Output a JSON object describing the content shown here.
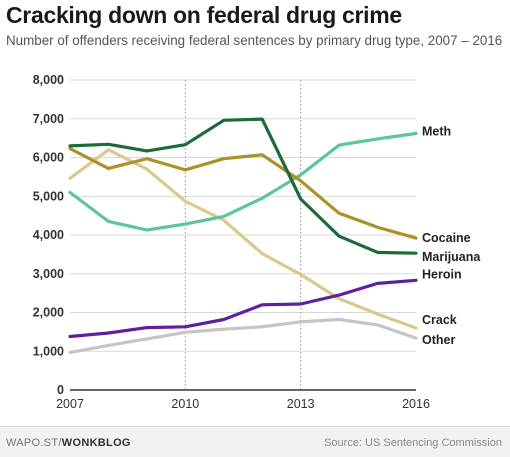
{
  "header": {
    "title": "Cracking down on federal drug crime",
    "subtitle": "Number of offenders receiving federal sentences by primary drug type, 2007 – 2016"
  },
  "footer": {
    "credit_prefix": "WAPO.ST/",
    "credit_brand": "WONKBLOG",
    "source": "Source: US Sentencing Commission"
  },
  "chart_data": {
    "type": "line",
    "title": "Cracking down on federal drug crime",
    "subtitle": "Number of offenders receiving federal sentences by primary drug type, 2007 – 2016",
    "xlabel": "",
    "ylabel": "",
    "xlim": [
      2007,
      2016
    ],
    "ylim": [
      0,
      8000
    ],
    "x_ticks": [
      2007,
      2010,
      2013,
      2016
    ],
    "x_tick_labels": [
      "2007",
      "2010",
      "2013",
      "2016"
    ],
    "y_ticks": [
      0,
      1000,
      2000,
      3000,
      4000,
      5000,
      6000,
      7000,
      8000
    ],
    "y_tick_labels": [
      "0",
      "1,000",
      "2,000",
      "3,000",
      "4,000",
      "5,000",
      "6,000",
      "7,000",
      "8,000"
    ],
    "grid": "horizontal gridlines; dotted vertical lines at 2010 and 2013",
    "legend": "direct labels at right end of each line",
    "x": [
      2007,
      2008,
      2009,
      2010,
      2011,
      2012,
      2013,
      2014,
      2015,
      2016
    ],
    "series": [
      {
        "name": "Meth",
        "color": "#5cc69a",
        "values": [
          5100,
          4350,
          4130,
          4280,
          4480,
          4950,
          5550,
          6320,
          6480,
          6620
        ]
      },
      {
        "name": "Cocaine",
        "color": "#ad9126",
        "values": [
          6230,
          5720,
          5970,
          5680,
          5970,
          6070,
          5400,
          4560,
          4200,
          3920
        ]
      },
      {
        "name": "Marijuana",
        "color": "#1e6b3a",
        "values": [
          6300,
          6340,
          6170,
          6330,
          6960,
          6990,
          4930,
          3970,
          3550,
          3530
        ]
      },
      {
        "name": "Heroin",
        "color": "#5f1f9e",
        "values": [
          1380,
          1470,
          1610,
          1630,
          1820,
          2200,
          2220,
          2450,
          2750,
          2830
        ]
      },
      {
        "name": "Crack",
        "color": "#dac98a",
        "values": [
          5460,
          6200,
          5700,
          4870,
          4380,
          3520,
          2980,
          2360,
          1960,
          1600
        ]
      },
      {
        "name": "Other",
        "color": "#c5c5c5",
        "values": [
          970,
          1150,
          1320,
          1490,
          1570,
          1630,
          1760,
          1820,
          1680,
          1340
        ]
      }
    ]
  }
}
